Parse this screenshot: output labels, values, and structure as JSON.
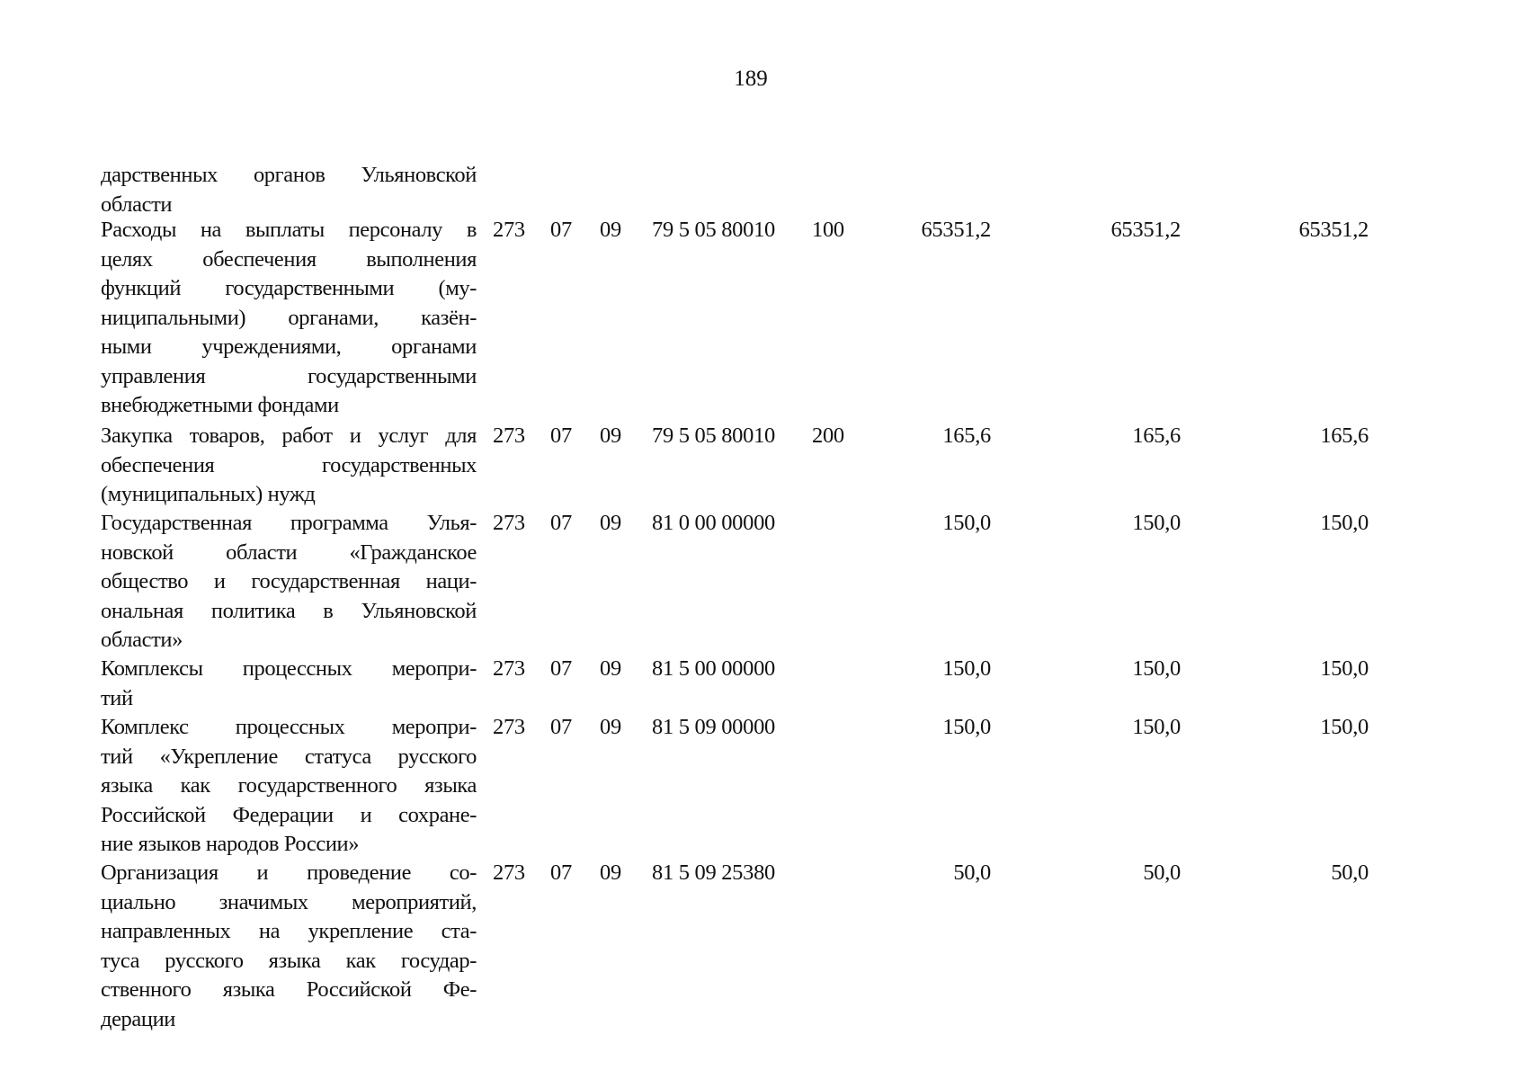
{
  "page_number": "189",
  "rows": [
    {
      "lines": [
        "дарственных органов Ульяновской",
        "области"
      ],
      "grbs": "",
      "rz": "",
      "pr": "",
      "csr": "",
      "vr": "",
      "v1": "",
      "v2": "",
      "v3": ""
    },
    {
      "lines": [
        "Расходы на выплаты персоналу в",
        "целях обеспечения выполнения",
        "функций государственными (му-",
        "ниципальными) органами, казён-",
        "ными учреждениями, органами",
        "управления государственными",
        "внебюджетными фондами"
      ],
      "grbs": "273",
      "rz": "07",
      "pr": "09",
      "csr": "79 5 05 80010",
      "vr": "100",
      "v1": "65351,2",
      "v2": "65351,2",
      "v3": "65351,2"
    },
    {
      "lines": [
        "Закупка товаров, работ и услуг для",
        "обеспечения государственных",
        "(муниципальных) нужд"
      ],
      "grbs": "273",
      "rz": "07",
      "pr": "09",
      "csr": "79 5 05 80010",
      "vr": "200",
      "v1": "165,6",
      "v2": "165,6",
      "v3": "165,6"
    },
    {
      "lines": [
        "Государственная программа Улья-",
        "новской области «Гражданское",
        "общество и государственная наци-",
        "ональная политика в Ульяновской",
        "области»"
      ],
      "grbs": "273",
      "rz": "07",
      "pr": "09",
      "csr": "81 0 00 00000",
      "vr": "",
      "v1": "150,0",
      "v2": "150,0",
      "v3": "150,0"
    },
    {
      "lines": [
        "Комплексы процессных меропри-",
        "тий"
      ],
      "grbs": "273",
      "rz": "07",
      "pr": "09",
      "csr": "81 5 00 00000",
      "vr": "",
      "v1": "150,0",
      "v2": "150,0",
      "v3": "150,0"
    },
    {
      "lines": [
        "Комплекс процессных меропри-",
        "тий «Укрепление статуса русского",
        "языка как государственного языка",
        "Российской Федерации и сохране-",
        "ние языков народов России»"
      ],
      "grbs": "273",
      "rz": "07",
      "pr": "09",
      "csr": "81 5 09 00000",
      "vr": "",
      "v1": "150,0",
      "v2": "150,0",
      "v3": "150,0"
    },
    {
      "lines": [
        "Организация и проведение со-",
        "циально значимых мероприятий,",
        "направленных на укрепление ста-",
        "туса русского языка как государ-",
        "ственного языка Российской Фе-",
        "дерации"
      ],
      "grbs": "273",
      "rz": "07",
      "pr": "09",
      "csr": "81 5 09 25380",
      "vr": "",
      "v1": "50,0",
      "v2": "50,0",
      "v3": "50,0"
    }
  ]
}
